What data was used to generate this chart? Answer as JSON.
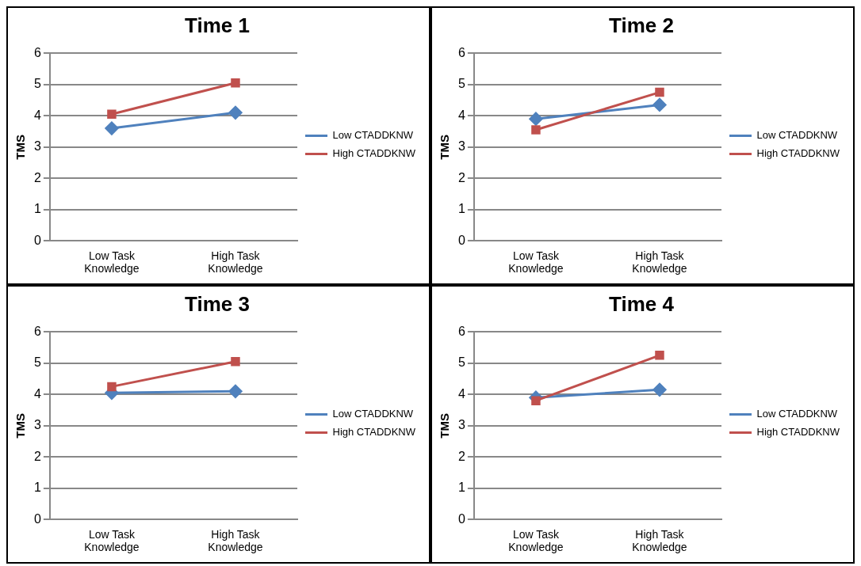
{
  "chart_data": [
    {
      "type": "line",
      "title": "Time 1",
      "ylabel": "TMS",
      "categories": [
        "Low Task Knowledge",
        "High Task Knowledge"
      ],
      "ylim": [
        0,
        6
      ],
      "yticks": [
        0,
        1,
        2,
        3,
        4,
        5,
        6
      ],
      "grid": "y",
      "legend": "right",
      "series": [
        {
          "name": "Low CTADDKNW",
          "color": "#4f81bd",
          "marker": "diamond",
          "values": [
            3.6,
            4.1
          ]
        },
        {
          "name": "High CTADDKNW",
          "color": "#c0504d",
          "marker": "square",
          "values": [
            4.05,
            5.05
          ]
        }
      ]
    },
    {
      "type": "line",
      "title": "Time 2",
      "ylabel": "TMS",
      "categories": [
        "Low Task Knowledge",
        "High Task Knowledge"
      ],
      "ylim": [
        0,
        6
      ],
      "yticks": [
        0,
        1,
        2,
        3,
        4,
        5,
        6
      ],
      "grid": "y",
      "legend": "right",
      "series": [
        {
          "name": "Low CTADDKNW",
          "color": "#4f81bd",
          "marker": "diamond",
          "values": [
            3.9,
            4.35
          ]
        },
        {
          "name": "High CTADDKNW",
          "color": "#c0504d",
          "marker": "square",
          "values": [
            3.55,
            4.75
          ]
        }
      ]
    },
    {
      "type": "line",
      "title": "Time 3",
      "ylabel": "TMS",
      "categories": [
        "Low Task Knowledge",
        "High Task Knowledge"
      ],
      "ylim": [
        0,
        6
      ],
      "yticks": [
        0,
        1,
        2,
        3,
        4,
        5,
        6
      ],
      "grid": "y",
      "legend": "right",
      "series": [
        {
          "name": "Low CTADDKNW",
          "color": "#4f81bd",
          "marker": "diamond",
          "values": [
            4.05,
            4.1
          ]
        },
        {
          "name": "High CTADDKNW",
          "color": "#c0504d",
          "marker": "square",
          "values": [
            4.25,
            5.05
          ]
        }
      ]
    },
    {
      "type": "line",
      "title": "Time 4",
      "ylabel": "TMS",
      "categories": [
        "Low Task Knowledge",
        "High Task Knowledge"
      ],
      "ylim": [
        0,
        6
      ],
      "yticks": [
        0,
        1,
        2,
        3,
        4,
        5,
        6
      ],
      "grid": "y",
      "legend": "right",
      "series": [
        {
          "name": "Low CTADDKNW",
          "color": "#4f81bd",
          "marker": "diamond",
          "values": [
            3.9,
            4.15
          ]
        },
        {
          "name": "High CTADDKNW",
          "color": "#c0504d",
          "marker": "square",
          "values": [
            3.8,
            5.25
          ]
        }
      ]
    }
  ]
}
